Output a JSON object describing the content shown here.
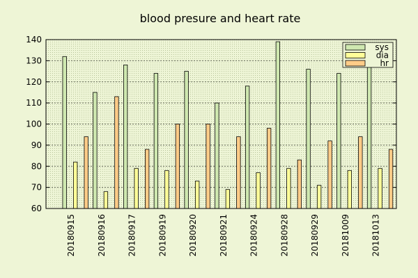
{
  "chart_data": {
    "type": "bar",
    "title": "blood presure and heart rate",
    "xlabel": "",
    "ylabel": "",
    "ylim": [
      60,
      140
    ],
    "yticks": [
      60,
      70,
      80,
      90,
      100,
      110,
      120,
      130,
      140
    ],
    "categories": [
      "20180915",
      "20180916",
      "20180917",
      "20180919",
      "20180920",
      "20180921",
      "20180924",
      "20180928",
      "20180929",
      "20181009",
      "20181013"
    ],
    "series": [
      {
        "name": "sys",
        "color": "#cfe8b0",
        "values": [
          132,
          115,
          128,
          124,
          125,
          110,
          118,
          139,
          126,
          124,
          128
        ]
      },
      {
        "name": "dia",
        "color": "#ffff99",
        "values": [
          82,
          68,
          79,
          78,
          73,
          69,
          77,
          79,
          71,
          78,
          79
        ]
      },
      {
        "name": "hr",
        "color": "#ffcc88",
        "values": [
          94,
          113,
          88,
          100,
          100,
          94,
          98,
          83,
          92,
          94,
          88
        ]
      }
    ],
    "grid": true,
    "legend_position": "top-right"
  }
}
